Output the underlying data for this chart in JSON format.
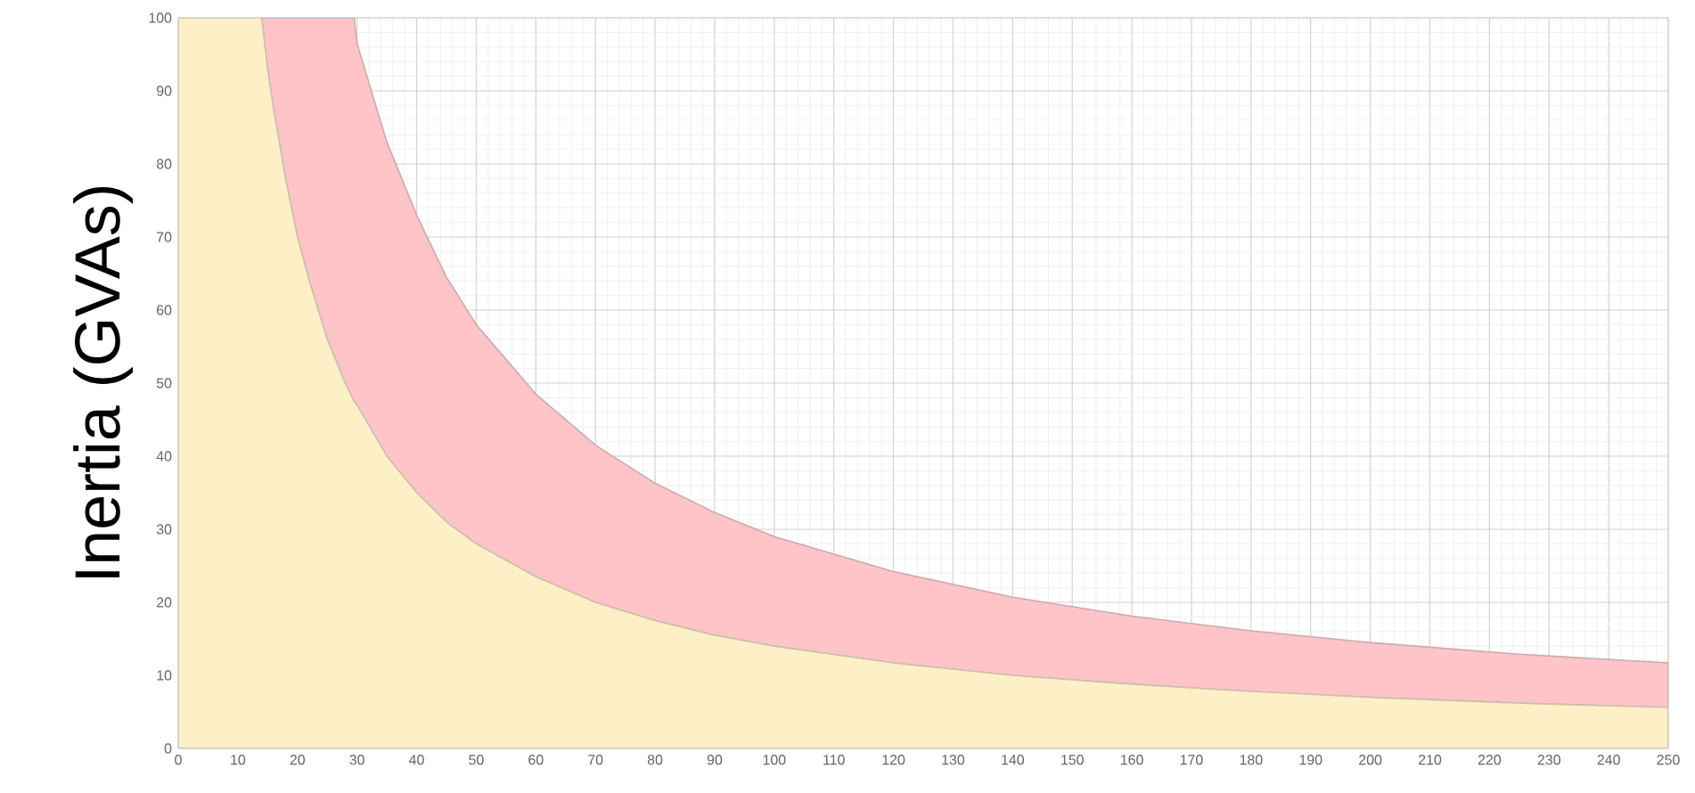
{
  "chart_data": {
    "type": "area",
    "ylabel": "Inertia (GVAs)",
    "stacked": true,
    "x": [
      0,
      14,
      15,
      16,
      18,
      20,
      22,
      25,
      28,
      29.5,
      30,
      35,
      40,
      45,
      50,
      60,
      70,
      80,
      90,
      100,
      120,
      140,
      160,
      180,
      200,
      225,
      250
    ],
    "series": [
      {
        "color": "#fdefc6",
        "values": [
          100,
          100,
          93,
          87.5,
          78,
          70,
          64,
          56,
          50,
          47.5,
          47,
          40,
          35,
          31,
          28,
          23.5,
          20,
          17.5,
          15.5,
          14,
          11.7,
          10,
          8.8,
          7.8,
          7,
          6.2,
          5.6
        ]
      },
      {
        "color": "#ffc4c8",
        "values": [
          0,
          0,
          7,
          12.5,
          22,
          30,
          36,
          44,
          50,
          52.5,
          49.5,
          43,
          38,
          33.5,
          30,
          25,
          21.5,
          18.8,
          16.8,
          15,
          12.5,
          10.7,
          9.3,
          8.3,
          7.5,
          6.7,
          6.1
        ]
      }
    ],
    "xlim": [
      0,
      250
    ],
    "xticks": [
      0,
      10,
      20,
      30,
      40,
      50,
      60,
      70,
      80,
      90,
      100,
      110,
      120,
      130,
      140,
      150,
      160,
      170,
      180,
      190,
      200,
      210,
      220,
      230,
      240,
      250
    ],
    "ylim": [
      0,
      100
    ],
    "yticks": [
      0,
      10,
      20,
      30,
      40,
      50,
      60,
      70,
      80,
      90,
      100
    ],
    "grid": true
  }
}
